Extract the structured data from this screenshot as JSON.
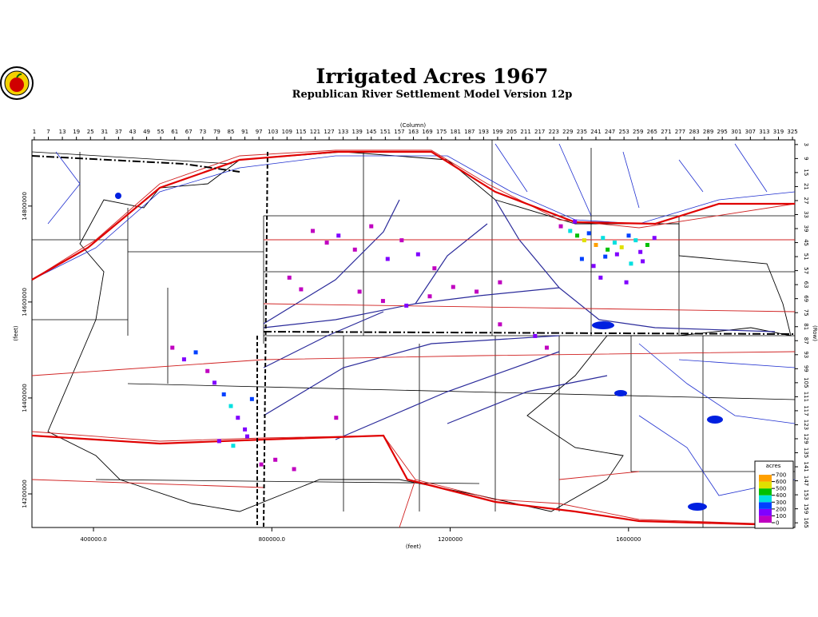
{
  "header": {
    "title": "Irrigated Acres 1967",
    "subtitle": "Republican River Settlement Model Version 12p"
  },
  "chart_data": {
    "type": "raster",
    "xlabel": "(feet)",
    "ylabel": "(feet)",
    "xlim": [
      262000,
      1973000
    ],
    "xticks": [
      {
        "value": 400000,
        "label": "400000.0"
      },
      {
        "value": 800000,
        "label": "800000.0"
      },
      1200000,
      1600000
    ],
    "ylim": [
      14130000,
      14938000
    ],
    "yticks": [
      14200000,
      14400000,
      14600000,
      14800000
    ],
    "column_label": "(Column)",
    "column_lim": [
      0,
      326
    ],
    "column_ticks": [
      1,
      7,
      13,
      19,
      25,
      31,
      37,
      43,
      49,
      55,
      61,
      67,
      73,
      79,
      85,
      91,
      97,
      103,
      109,
      115,
      121,
      127,
      133,
      139,
      145,
      151,
      157,
      163,
      169,
      175,
      181,
      187,
      193,
      199,
      205,
      211,
      217,
      223,
      229,
      235,
      241,
      247,
      253,
      259,
      265,
      271,
      277,
      283,
      289,
      295,
      301,
      307,
      313,
      319,
      325
    ],
    "row_label": "(Row)",
    "row_lim": [
      1,
      167
    ],
    "row_ticks": [
      3,
      9,
      15,
      21,
      27,
      33,
      39,
      45,
      51,
      57,
      63,
      69,
      75,
      81,
      87,
      93,
      99,
      105,
      111,
      117,
      123,
      129,
      135,
      141,
      147,
      153,
      159,
      165
    ],
    "cells": {
      "columns": [
        230,
        233,
        236,
        238,
        241,
        244,
        246,
        249,
        252,
        255,
        258,
        260,
        263,
        266,
        235,
        240,
        245,
        250,
        256,
        261,
        226,
        232,
        243,
        254,
        120,
        126,
        131,
        138,
        145,
        152,
        158,
        165,
        172,
        110,
        115,
        140,
        150,
        160,
        170,
        180,
        190,
        200,
        78,
        82,
        85,
        88,
        91,
        94,
        80,
        86,
        92,
        75,
        70,
        60,
        65,
        98,
        104,
        112,
        130,
        200,
        215,
        220
      ],
      "rows": [
        40,
        42,
        44,
        41,
        46,
        43,
        48,
        45,
        47,
        42,
        44,
        49,
        46,
        43,
        52,
        55,
        51,
        50,
        54,
        53,
        38,
        36,
        60,
        62,
        40,
        45,
        42,
        48,
        38,
        52,
        44,
        50,
        56,
        60,
        65,
        66,
        70,
        72,
        68,
        64,
        66,
        62,
        105,
        110,
        115,
        120,
        125,
        112,
        130,
        132,
        128,
        100,
        92,
        90,
        95,
        140,
        138,
        142,
        120,
        80,
        85,
        90
      ],
      "values": [
        350,
        420,
        500,
        280,
        600,
        380,
        450,
        300,
        520,
        250,
        330,
        150,
        400,
        180,
        220,
        130,
        260,
        170,
        310,
        120,
        90,
        110,
        140,
        160,
        70,
        90,
        110,
        60,
        80,
        100,
        70,
        120,
        60,
        80,
        90,
        60,
        70,
        100,
        80,
        60,
        70,
        90,
        150,
        220,
        300,
        120,
        180,
        250,
        100,
        350,
        140,
        90,
        200,
        70,
        110,
        80,
        60,
        90,
        70,
        80,
        120,
        60
      ]
    },
    "legend": {
      "title": "acres",
      "ticks": [
        0,
        100,
        200,
        300,
        400,
        500,
        600,
        700
      ],
      "colors": [
        "#c000c0",
        "#8000ff",
        "#0040ff",
        "#00e0e0",
        "#00c000",
        "#e0e000",
        "#ffa000"
      ]
    }
  }
}
